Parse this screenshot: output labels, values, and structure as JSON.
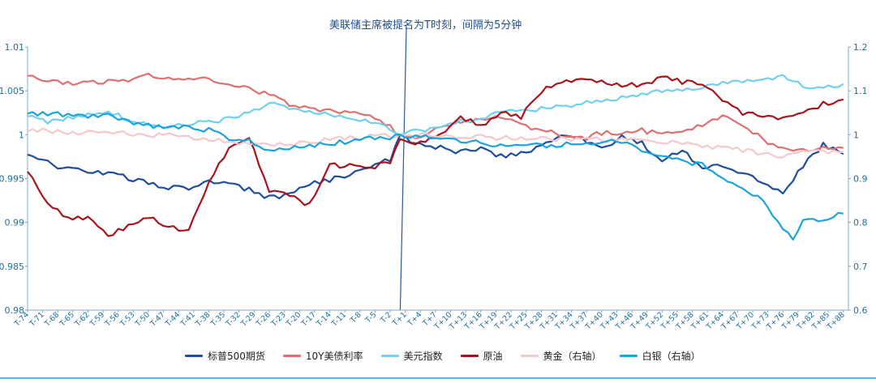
{
  "chart_data": {
    "type": "line",
    "annotation": "美联储主席被提名为T时刻，间隔为5分钟",
    "x_tick_labels": [
      "T-74",
      "T-71",
      "T-68",
      "T-65",
      "T-62",
      "T-59",
      "T-56",
      "T-53",
      "T-50",
      "T-47",
      "T-44",
      "T-41",
      "T-38",
      "T-35",
      "T-32",
      "T-29",
      "T-26",
      "T-23",
      "T-20",
      "T-17",
      "T-14",
      "T-11",
      "T-8",
      "T-5",
      "T-2",
      "T+1",
      "T+4",
      "T+7",
      "T+10",
      "T+13",
      "T+16",
      "T+19",
      "T+22",
      "T+25",
      "T+28",
      "T+31",
      "T+34",
      "T+37",
      "T+40",
      "T+43",
      "T+46",
      "T+49",
      "T+52",
      "T+55",
      "T+58",
      "T+61",
      "T+64",
      "T+67",
      "T+70",
      "T+73",
      "T+76",
      "T+79",
      "T+82",
      "T+85",
      "T+88"
    ],
    "x_range": [
      -74,
      89
    ],
    "y_left": {
      "ylim": [
        0.98,
        1.01
      ],
      "tick_labels": [
        "0.98",
        "0.985",
        "0.99",
        "0.995",
        "1",
        "1.005",
        "1.01"
      ]
    },
    "y_right": {
      "ylim": [
        0.6,
        1.2
      ],
      "tick_labels": [
        "0.6",
        "0.7",
        "0.8",
        "0.9",
        "1",
        "1.1",
        "1.2"
      ]
    },
    "series": [
      {
        "name": "标普500期货",
        "color": "#1f4e9c",
        "axis": "left",
        "points": [
          [
            -74,
            0.9978
          ],
          [
            -70,
            0.9968
          ],
          [
            -66,
            0.996
          ],
          [
            -62,
            0.9958
          ],
          [
            -58,
            0.9957
          ],
          [
            -54,
            0.995
          ],
          [
            -50,
            0.9945
          ],
          [
            -46,
            0.994
          ],
          [
            -42,
            0.9938
          ],
          [
            -38,
            0.9948
          ],
          [
            -34,
            0.9945
          ],
          [
            -30,
            0.9937
          ],
          [
            -26,
            0.9928
          ],
          [
            -22,
            0.9932
          ],
          [
            -18,
            0.9945
          ],
          [
            -14,
            0.9948
          ],
          [
            -10,
            0.9955
          ],
          [
            -6,
            0.9962
          ],
          [
            -2,
            0.9972
          ],
          [
            0,
            1.0
          ],
          [
            4,
            0.9988
          ],
          [
            8,
            0.9985
          ],
          [
            12,
            0.998
          ],
          [
            16,
            0.9985
          ],
          [
            20,
            0.9975
          ],
          [
            24,
            0.9978
          ],
          [
            28,
            0.9988
          ],
          [
            32,
            1.0
          ],
          [
            36,
            0.9995
          ],
          [
            40,
            0.9985
          ],
          [
            44,
            0.9997
          ],
          [
            48,
            0.999
          ],
          [
            52,
            0.997
          ],
          [
            56,
            0.9982
          ],
          [
            60,
            0.996
          ],
          [
            64,
            0.9965
          ],
          [
            68,
            0.9955
          ],
          [
            72,
            0.9945
          ],
          [
            76,
            0.9935
          ],
          [
            80,
            0.9965
          ],
          [
            84,
            0.9988
          ],
          [
            88,
            0.9978
          ]
        ]
      },
      {
        "name": "10Y美债利率",
        "color": "#e07070",
        "axis": "left",
        "points": [
          [
            -74,
            1.007
          ],
          [
            -70,
            1.006
          ],
          [
            -66,
            1.0058
          ],
          [
            -62,
            1.0058
          ],
          [
            -58,
            1.0062
          ],
          [
            -54,
            1.006
          ],
          [
            -50,
            1.0068
          ],
          [
            -46,
            1.0065
          ],
          [
            -42,
            1.0062
          ],
          [
            -38,
            1.0063
          ],
          [
            -34,
            1.0058
          ],
          [
            -30,
            1.0052
          ],
          [
            -26,
            1.0045
          ],
          [
            -22,
            1.0035
          ],
          [
            -18,
            1.003
          ],
          [
            -14,
            1.0028
          ],
          [
            -10,
            1.0025
          ],
          [
            -6,
            1.002
          ],
          [
            -2,
            1.001
          ],
          [
            0,
            1.0
          ],
          [
            4,
            0.9998
          ],
          [
            8,
            1.001
          ],
          [
            12,
            1.0015
          ],
          [
            16,
            1.0018
          ],
          [
            20,
            1.002
          ],
          [
            24,
            1.001
          ],
          [
            28,
            1.0005
          ],
          [
            32,
            1.0
          ],
          [
            36,
            0.9995
          ],
          [
            40,
            1.0002
          ],
          [
            44,
            1.0
          ],
          [
            48,
            1.0005
          ],
          [
            52,
            1.0
          ],
          [
            56,
            1.0005
          ],
          [
            60,
            1.001
          ],
          [
            64,
            1.002
          ],
          [
            68,
            1.001
          ],
          [
            72,
            0.9995
          ],
          [
            76,
            0.9983
          ],
          [
            80,
            0.9982
          ],
          [
            84,
            0.9987
          ],
          [
            88,
            0.9985
          ]
        ]
      },
      {
        "name": "美元指数",
        "color": "#6fd0ef",
        "axis": "left",
        "points": [
          [
            -74,
            1.002
          ],
          [
            -70,
            1.0015
          ],
          [
            -66,
            1.002
          ],
          [
            -62,
            1.0022
          ],
          [
            -58,
            1.0025
          ],
          [
            -54,
            1.0018
          ],
          [
            -50,
            1.0012
          ],
          [
            -46,
            1.001
          ],
          [
            -42,
            1.0012
          ],
          [
            -38,
            1.0015
          ],
          [
            -34,
            1.0018
          ],
          [
            -30,
            1.0025
          ],
          [
            -26,
            1.0035
          ],
          [
            -22,
            1.003
          ],
          [
            -18,
            1.0025
          ],
          [
            -14,
            1.0022
          ],
          [
            -10,
            1.0018
          ],
          [
            -6,
            1.0015
          ],
          [
            -2,
            1.0008
          ],
          [
            0,
            1.0
          ],
          [
            4,
            1.0005
          ],
          [
            8,
            1.001
          ],
          [
            12,
            1.0015
          ],
          [
            16,
            1.0018
          ],
          [
            20,
            1.0025
          ],
          [
            24,
            1.0028
          ],
          [
            28,
            1.003
          ],
          [
            32,
            1.0032
          ],
          [
            36,
            1.0035
          ],
          [
            40,
            1.004
          ],
          [
            44,
            1.0042
          ],
          [
            48,
            1.0045
          ],
          [
            52,
            1.005
          ],
          [
            56,
            1.0052
          ],
          [
            60,
            1.0055
          ],
          [
            64,
            1.0058
          ],
          [
            68,
            1.006
          ],
          [
            72,
            1.0062
          ],
          [
            76,
            1.0068
          ],
          [
            80,
            1.0055
          ],
          [
            84,
            1.0055
          ],
          [
            88,
            1.0058
          ]
        ]
      },
      {
        "name": "原油",
        "color": "#a8141b",
        "axis": "left",
        "points": [
          [
            -74,
            0.996
          ],
          [
            -70,
            0.992
          ],
          [
            -66,
            0.9905
          ],
          [
            -62,
            0.9905
          ],
          [
            -58,
            0.9885
          ],
          [
            -54,
            0.9895
          ],
          [
            -50,
            0.9905
          ],
          [
            -46,
            0.9895
          ],
          [
            -42,
            0.989
          ],
          [
            -38,
            0.9945
          ],
          [
            -34,
            0.9985
          ],
          [
            -30,
            0.9995
          ],
          [
            -26,
            0.9935
          ],
          [
            -22,
            0.993
          ],
          [
            -18,
            0.992
          ],
          [
            -14,
            0.9965
          ],
          [
            -10,
            0.9965
          ],
          [
            -6,
            0.996
          ],
          [
            -2,
            0.997
          ],
          [
            0,
            0.9995
          ],
          [
            4,
            0.999
          ],
          [
            8,
            1.0
          ],
          [
            12,
            1.002
          ],
          [
            16,
            1.001
          ],
          [
            20,
            1.0025
          ],
          [
            24,
            1.002
          ],
          [
            28,
            1.005
          ],
          [
            32,
            1.006
          ],
          [
            36,
            1.0065
          ],
          [
            40,
            1.006
          ],
          [
            44,
            1.0055
          ],
          [
            48,
            1.0058
          ],
          [
            52,
            1.0065
          ],
          [
            56,
            1.006
          ],
          [
            60,
            1.0058
          ],
          [
            64,
            1.004
          ],
          [
            68,
            1.0025
          ],
          [
            72,
            1.002
          ],
          [
            76,
            1.0018
          ],
          [
            80,
            1.0025
          ],
          [
            84,
            1.0035
          ],
          [
            88,
            1.004
          ]
        ]
      },
      {
        "name": "黄金（右轴）",
        "color": "#f5c8cc",
        "axis": "right",
        "points": [
          [
            -74,
            1.01
          ],
          [
            -70,
            1.008
          ],
          [
            -66,
            1.005
          ],
          [
            -62,
            1.005
          ],
          [
            -58,
            1.003
          ],
          [
            -54,
            1.002
          ],
          [
            -50,
            1.0
          ],
          [
            -46,
            0.998
          ],
          [
            -42,
            0.995
          ],
          [
            -38,
            0.99
          ],
          [
            -34,
            0.985
          ],
          [
            -30,
            0.98
          ],
          [
            -26,
            0.978
          ],
          [
            -22,
            0.98
          ],
          [
            -18,
            0.985
          ],
          [
            -14,
            0.99
          ],
          [
            -10,
            0.993
          ],
          [
            -6,
            0.995
          ],
          [
            -2,
            0.998
          ],
          [
            0,
            1.0
          ],
          [
            4,
            0.999
          ],
          [
            8,
            0.998
          ],
          [
            12,
            0.997
          ],
          [
            16,
            0.995
          ],
          [
            20,
            0.993
          ],
          [
            24,
            0.992
          ],
          [
            28,
            0.99
          ],
          [
            32,
            0.99
          ],
          [
            36,
            0.99
          ],
          [
            40,
            0.988
          ],
          [
            44,
            0.987
          ],
          [
            48,
            0.985
          ],
          [
            52,
            0.982
          ],
          [
            56,
            0.98
          ],
          [
            60,
            0.975
          ],
          [
            64,
            0.97
          ],
          [
            68,
            0.965
          ],
          [
            72,
            0.958
          ],
          [
            76,
            0.95
          ],
          [
            80,
            0.96
          ],
          [
            84,
            0.962
          ],
          [
            88,
            0.96
          ]
        ]
      },
      {
        "name": "白银（右轴）",
        "color": "#1ca3db",
        "axis": "right",
        "points": [
          [
            -74,
            1.05
          ],
          [
            -70,
            1.048
          ],
          [
            -66,
            1.045
          ],
          [
            -62,
            1.04
          ],
          [
            -58,
            1.045
          ],
          [
            -54,
            1.03
          ],
          [
            -50,
            1.02
          ],
          [
            -46,
            1.015
          ],
          [
            -42,
            1.02
          ],
          [
            -38,
            1.01
          ],
          [
            -34,
            0.99
          ],
          [
            -30,
            0.985
          ],
          [
            -26,
            0.96
          ],
          [
            -22,
            0.97
          ],
          [
            -18,
            0.975
          ],
          [
            -14,
            0.98
          ],
          [
            -10,
            0.985
          ],
          [
            -6,
            0.99
          ],
          [
            -2,
            0.995
          ],
          [
            0,
            1.0
          ],
          [
            4,
            0.995
          ],
          [
            8,
            0.99
          ],
          [
            12,
            0.985
          ],
          [
            16,
            0.982
          ],
          [
            20,
            0.975
          ],
          [
            24,
            0.98
          ],
          [
            28,
            0.975
          ],
          [
            32,
            0.978
          ],
          [
            36,
            0.98
          ],
          [
            40,
            0.982
          ],
          [
            44,
            0.985
          ],
          [
            48,
            0.965
          ],
          [
            52,
            0.95
          ],
          [
            56,
            0.94
          ],
          [
            60,
            0.93
          ],
          [
            64,
            0.9
          ],
          [
            68,
            0.88
          ],
          [
            72,
            0.85
          ],
          [
            74,
            0.82
          ],
          [
            76,
            0.79
          ],
          [
            78,
            0.76
          ],
          [
            80,
            0.8
          ],
          [
            84,
            0.81
          ],
          [
            88,
            0.82
          ]
        ]
      }
    ]
  }
}
